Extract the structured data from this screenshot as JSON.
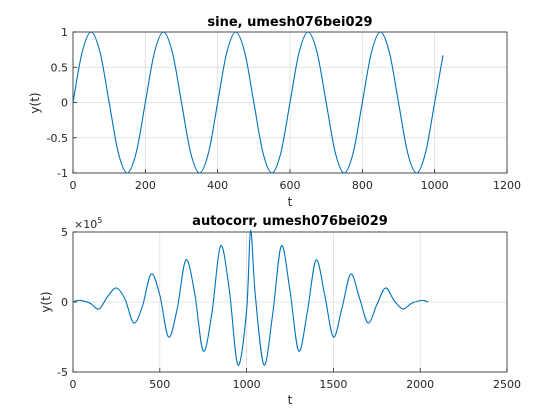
{
  "chart_data": [
    {
      "type": "line",
      "title": "sine, umesh076bei029",
      "xlabel": "t",
      "ylabel": "y(t)",
      "xlim": [
        0,
        1200
      ],
      "ylim": [
        -1,
        1
      ],
      "xticks": [
        0,
        200,
        400,
        600,
        800,
        1000,
        1200
      ],
      "yticks": [
        -1,
        -0.5,
        0,
        0.5,
        1
      ],
      "xtick_labels": [
        "0",
        "200",
        "400",
        "600",
        "800",
        "1000",
        "1200"
      ],
      "ytick_labels": [
        "-1",
        "-0.5",
        "0",
        "0.5",
        "1"
      ],
      "grid": true,
      "color": "#0072BD",
      "series": [
        {
          "x": [
            0,
            25,
            50,
            75,
            100,
            125,
            150,
            175,
            200,
            225,
            250,
            275,
            300,
            325,
            350,
            375,
            400,
            425,
            450,
            475,
            500,
            525,
            550,
            575,
            600,
            625,
            650,
            675,
            700,
            725,
            750,
            775,
            800,
            825,
            850,
            875,
            900,
            925,
            950,
            975,
            1000,
            1023
          ],
          "y": [
            0,
            0.707,
            1,
            0.707,
            0,
            -0.707,
            -1,
            -0.707,
            0,
            0.707,
            1,
            0.707,
            0,
            -0.707,
            -1,
            -0.707,
            0,
            0.707,
            1,
            0.707,
            0,
            -0.707,
            -1,
            -0.707,
            0,
            0.707,
            1,
            0.707,
            0,
            -0.707,
            -1,
            -0.707,
            0,
            0.707,
            1,
            0.707,
            0,
            -0.707,
            -1,
            -0.707,
            0,
            0.67
          ]
        }
      ]
    },
    {
      "type": "line",
      "title": "autocorr, umesh076bei029",
      "xlabel": "t",
      "ylabel": "y(t)",
      "xlim": [
        0,
        2500
      ],
      "ylim": [
        -5,
        5
      ],
      "y_exponent_label": "×10",
      "y_exponent_power": "5",
      "xticks": [
        0,
        500,
        1000,
        1500,
        2000,
        2500
      ],
      "yticks": [
        -5,
        0,
        5
      ],
      "xtick_labels": [
        "0",
        "500",
        "1000",
        "1500",
        "2000",
        "2500"
      ],
      "ytick_labels": [
        "-5",
        "0",
        "5"
      ],
      "grid": true,
      "color": "#0072BD",
      "series": [
        {
          "x": [
            0,
            25,
            50,
            100,
            150,
            200,
            250,
            300,
            350,
            400,
            450,
            500,
            550,
            600,
            650,
            700,
            750,
            800,
            850,
            900,
            950,
            1000,
            1023,
            1050,
            1100,
            1150,
            1200,
            1250,
            1300,
            1350,
            1400,
            1450,
            1500,
            1550,
            1600,
            1650,
            1700,
            1750,
            1800,
            1850,
            1900,
            1950,
            2000,
            2023,
            2046
          ],
          "y": [
            0,
            0.1,
            0.1,
            -0.1,
            -0.5,
            0.4,
            1.0,
            0.2,
            -1.5,
            -0.3,
            2.0,
            0.5,
            -2.5,
            -0.5,
            3.0,
            0.7,
            -3.5,
            -0.8,
            4.0,
            0.9,
            -4.5,
            -0.6,
            5.1,
            0.5,
            -4.5,
            -0.9,
            4.0,
            0.8,
            -3.5,
            -0.7,
            3.0,
            0.5,
            -2.5,
            -0.4,
            2.0,
            0.3,
            -1.5,
            -0.2,
            1.0,
            0.1,
            -0.5,
            -0.1,
            0.1,
            0.1,
            0
          ]
        }
      ]
    }
  ]
}
